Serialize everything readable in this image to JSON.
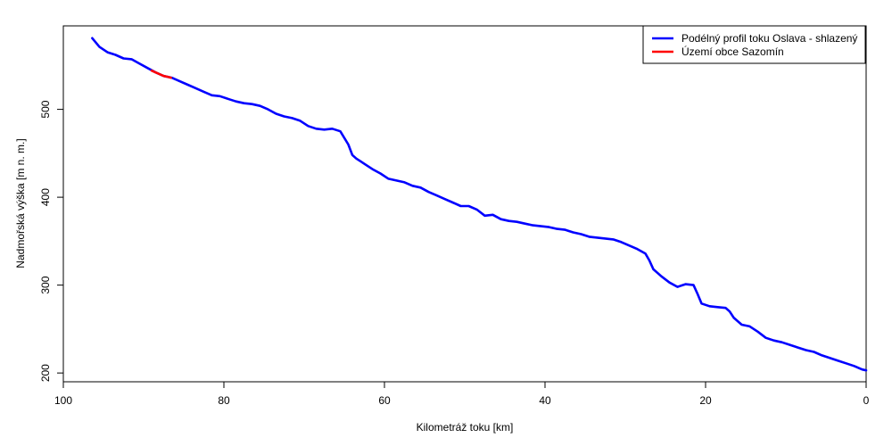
{
  "chart_data": {
    "type": "line",
    "xlabel": "Kilometráž toku [km]",
    "ylabel": "Nadmořská výška [m n. m.]",
    "xlim": [
      100,
      0
    ],
    "ylim": [
      190,
      595
    ],
    "x_ticks": [
      100,
      80,
      60,
      40,
      20,
      0
    ],
    "x_tick_labels": [
      "100",
      "80",
      "60",
      "40",
      "20",
      "0"
    ],
    "y_ticks": [
      200,
      300,
      400,
      500
    ],
    "y_tick_labels": [
      "200",
      "300",
      "400",
      "500"
    ],
    "grid": false,
    "legend_position": "top-right",
    "series": [
      {
        "name": "Podélný profil toku Oslava - shlazený",
        "color": "#0000ff",
        "x": [
          96.4,
          95.5,
          94.5,
          93.5,
          92.5,
          91.5,
          90.5,
          89.5,
          88.5,
          87.5,
          86.5,
          85.5,
          84.5,
          83.5,
          82.5,
          81.5,
          80.5,
          79.5,
          78.5,
          77.5,
          76.5,
          75.5,
          74.5,
          73.5,
          72.5,
          71.5,
          70.5,
          69.5,
          68.5,
          67.5,
          66.5,
          65.5,
          64.5,
          64.0,
          63.5,
          63.0,
          62.5,
          61.5,
          60.5,
          59.5,
          58.5,
          57.5,
          56.5,
          55.5,
          54.5,
          53.5,
          52.5,
          51.5,
          50.5,
          49.5,
          48.5,
          47.5,
          46.5,
          45.5,
          44.5,
          43.5,
          42.5,
          41.5,
          40.5,
          39.5,
          38.5,
          37.5,
          36.5,
          35.5,
          34.5,
          33.5,
          32.5,
          31.5,
          30.5,
          29.5,
          28.5,
          27.5,
          27.0,
          26.5,
          25.5,
          24.5,
          23.5,
          22.5,
          21.5,
          21.0,
          20.5,
          19.5,
          18.5,
          17.5,
          17.0,
          16.5,
          15.5,
          14.5,
          13.5,
          12.5,
          11.5,
          10.5,
          9.5,
          8.5,
          7.5,
          6.5,
          5.5,
          4.5,
          3.5,
          2.5,
          1.5,
          0.5,
          0.0
        ],
        "y": [
          581,
          571,
          565,
          562,
          558,
          557,
          552,
          547,
          542,
          538,
          536,
          532,
          528,
          524,
          520,
          516,
          515,
          512,
          509,
          507,
          506,
          504,
          500,
          495,
          492,
          490,
          487,
          481,
          478,
          477,
          478,
          475,
          460,
          448,
          444,
          441,
          438,
          432,
          427,
          421,
          419,
          417,
          413,
          411,
          406,
          402,
          398,
          394,
          390,
          390,
          386,
          379,
          380,
          375,
          373,
          372,
          370,
          368,
          367,
          366,
          364,
          363,
          360,
          358,
          355,
          354,
          353,
          352,
          349,
          345,
          341,
          336,
          328,
          318,
          310,
          303,
          298,
          301,
          300,
          290,
          279,
          276,
          275,
          274,
          270,
          263,
          255,
          253,
          247,
          240,
          237,
          235,
          232,
          229,
          226,
          224,
          220,
          217,
          214,
          211,
          208,
          204,
          203
        ]
      },
      {
        "name": "Území obce Sazomín",
        "color": "#ff0000",
        "x": [
          89.0,
          88.5,
          88.0,
          87.5,
          87.0,
          86.6
        ],
        "y": [
          544,
          542,
          540,
          538,
          537,
          536
        ]
      }
    ]
  }
}
